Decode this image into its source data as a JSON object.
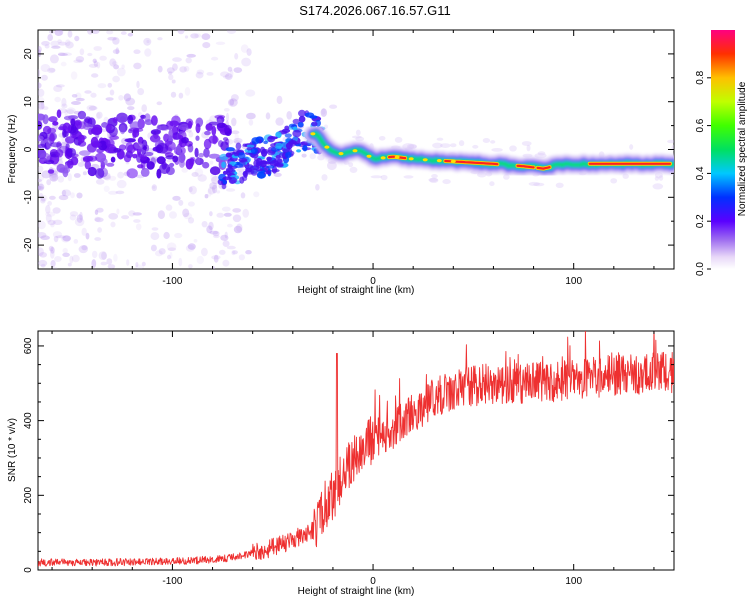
{
  "title": "S174.2026.067.16.57.G11",
  "chart_data": [
    {
      "type": "heatmap",
      "name": "spectrogram",
      "xlabel": "Height of straight line (km)",
      "ylabel": "Frequency (Hz)",
      "xlim": [
        -167,
        150
      ],
      "ylim": [
        -25,
        25
      ],
      "xticks": [
        -100,
        0,
        100
      ],
      "yticks": [
        -20,
        -10,
        0,
        10,
        20
      ],
      "colorbar": {
        "label": "Normalized spectral amplitude",
        "ticks": [
          "0.0",
          "0.2",
          "0.4",
          "0.6",
          "0.8"
        ],
        "range": [
          0,
          1
        ]
      },
      "ridge": [
        {
          "x": -72,
          "y": -4
        },
        {
          "x": -60,
          "y": -2
        },
        {
          "x": -45,
          "y": 0
        },
        {
          "x": -35,
          "y": 4
        },
        {
          "x": -28,
          "y": 3
        },
        {
          "x": -22,
          "y": 0
        },
        {
          "x": -15,
          "y": -1
        },
        {
          "x": -7,
          "y": 0
        },
        {
          "x": 0,
          "y": -2
        },
        {
          "x": 10,
          "y": -1.5
        },
        {
          "x": 20,
          "y": -2
        },
        {
          "x": 40,
          "y": -2.5
        },
        {
          "x": 60,
          "y": -3
        },
        {
          "x": 75,
          "y": -3.5
        },
        {
          "x": 85,
          "y": -4
        },
        {
          "x": 95,
          "y": -3
        },
        {
          "x": 110,
          "y": -3
        },
        {
          "x": 130,
          "y": -3
        },
        {
          "x": 148,
          "y": -3
        }
      ]
    },
    {
      "type": "line",
      "name": "snr",
      "color": "#ee3030",
      "xlabel": "Height of straight line (km)",
      "ylabel": "SNR (10 * v/v)",
      "xlim": [
        -167,
        150
      ],
      "ylim": [
        0,
        640
      ],
      "xticks": [
        -100,
        0,
        100
      ],
      "yticks": [
        0,
        200,
        400,
        600
      ],
      "trend": {
        "x": [
          -167,
          -140,
          -110,
          -90,
          -75,
          -60,
          -50,
          -40,
          -30,
          -25,
          -20,
          -15,
          -10,
          -5,
          0,
          10,
          20,
          30,
          45,
          60,
          80,
          100,
          120,
          150
        ],
        "y": [
          20,
          20,
          22,
          25,
          30,
          45,
          60,
          80,
          110,
          160,
          200,
          260,
          300,
          330,
          350,
          380,
          420,
          460,
          490,
          500,
          500,
          510,
          520,
          530
        ]
      },
      "peak": {
        "x": -18,
        "y": 580
      }
    }
  ]
}
